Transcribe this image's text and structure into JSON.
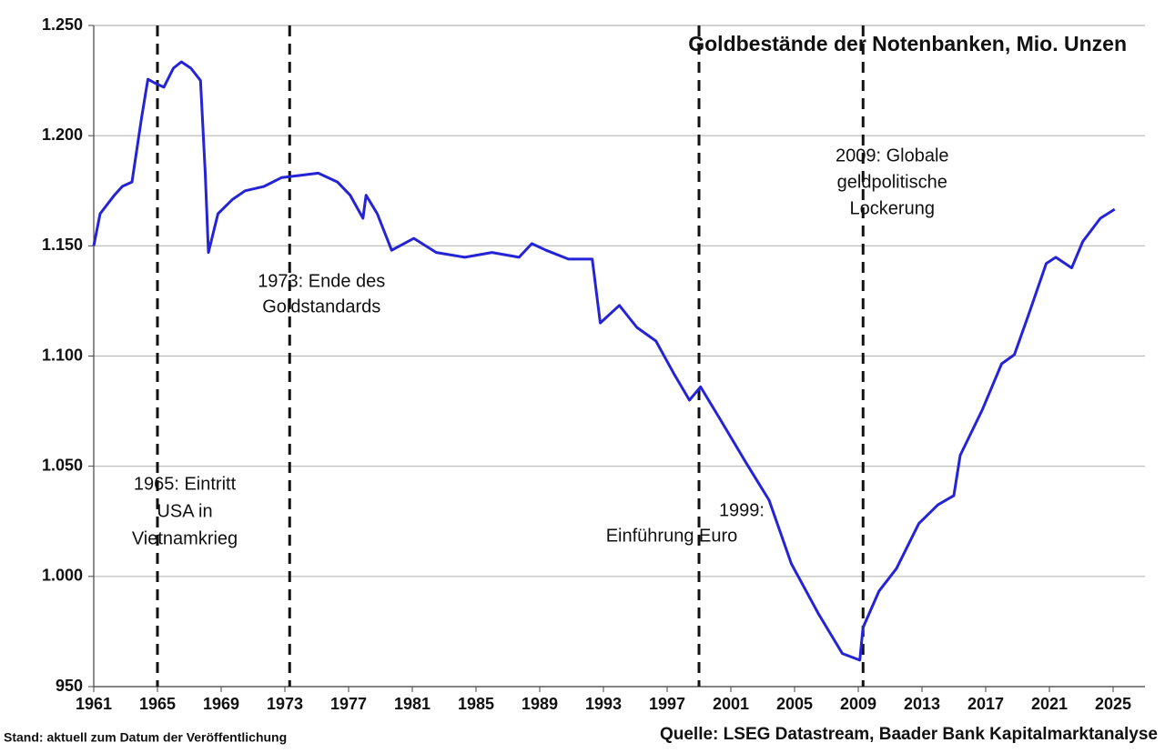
{
  "chart_data": {
    "type": "line",
    "title": "Goldbestände der Notenbanken, Mio. Unzen",
    "footnote_left": "Stand: aktuell zum Datum der Veröffentlichung",
    "footnote_right": "Quelle: LSEG Datastream, Baader Bank Kapitalmarktanalyse",
    "color": "#2424d6",
    "grid": true,
    "x": [
      1961.0,
      1961.4,
      1962.3,
      1962.8,
      1963.4,
      1964.0,
      1964.4,
      1964.8,
      1965.4,
      1966.0,
      1966.5,
      1967.1,
      1967.7,
      1968.0,
      1968.2,
      1968.8,
      1969.7,
      1970.5,
      1971.7,
      1972.8,
      1974.0,
      1975.1,
      1976.3,
      1977.1,
      1977.9,
      1978.1,
      1978.8,
      1979.7,
      1981.1,
      1982.5,
      1984.3,
      1986.0,
      1987.7,
      1988.5,
      1989.4,
      1990.8,
      1992.3,
      1992.8,
      1994.0,
      1995.1,
      1996.3,
      1997.4,
      1998.4,
      1999.1,
      2000.3,
      2002.0,
      2003.4,
      2004.8,
      2006.5,
      2008.0,
      2009.1,
      2009.3,
      2010.3,
      2011.4,
      2012.8,
      2014.0,
      2015.0,
      2015.4,
      2016.8,
      2018.0,
      2018.8,
      2019.7,
      2020.8,
      2021.4,
      2022.4,
      2023.1,
      2024.2,
      2025.1
    ],
    "values": [
      1150,
      1164.6,
      1173,
      1177,
      1179,
      1208,
      1225.6,
      1224,
      1222,
      1230.6,
      1233.5,
      1230.6,
      1225,
      1183,
      1147,
      1164.6,
      1171,
      1175,
      1177,
      1181,
      1182,
      1183,
      1179,
      1173,
      1162.5,
      1173,
      1164.6,
      1148,
      1153.4,
      1147,
      1144.8,
      1147,
      1144.8,
      1151,
      1148,
      1144,
      1144,
      1115,
      1123,
      1113,
      1106.8,
      1092.3,
      1080,
      1086,
      1071.7,
      1051,
      1034.6,
      1005.7,
      983,
      965,
      962,
      976.8,
      993.3,
      1003.6,
      1024,
      1032.5,
      1036.7,
      1055,
      1075.8,
      1096.5,
      1100.6,
      1119,
      1142,
      1144.8,
      1140,
      1152,
      1162.5,
      1166.6
    ],
    "xlim": [
      1961,
      2027
    ],
    "xticks": [
      1961,
      1965,
      1969,
      1973,
      1977,
      1981,
      1985,
      1989,
      1993,
      1997,
      2001,
      2005,
      2009,
      2013,
      2017,
      2021,
      2025
    ],
    "ylim": [
      950,
      1250
    ],
    "yticks": [
      950,
      {
        "value": 1000,
        "label": "1.000"
      },
      {
        "value": 1050,
        "label": "1.050"
      },
      {
        "value": 1100,
        "label": "1.100"
      },
      {
        "value": 1150,
        "label": "1.150"
      },
      {
        "value": 1200,
        "label": "1.200"
      },
      {
        "value": 1250,
        "label": "1.250"
      }
    ],
    "annotations": [
      {
        "x": 1965,
        "lines": [
          "1965: Eintritt",
          "USA in",
          "Vietnamkrieg"
        ]
      },
      {
        "x": 1973.3,
        "lines": [
          "1973: Ende des",
          "Goldstandards"
        ]
      },
      {
        "x": 1999,
        "lines": [
          "1999:",
          "Einführung Euro"
        ]
      },
      {
        "x": 2009.3,
        "lines": [
          "2009: Globale",
          "geldpolitische",
          "Lockerung"
        ]
      }
    ]
  }
}
